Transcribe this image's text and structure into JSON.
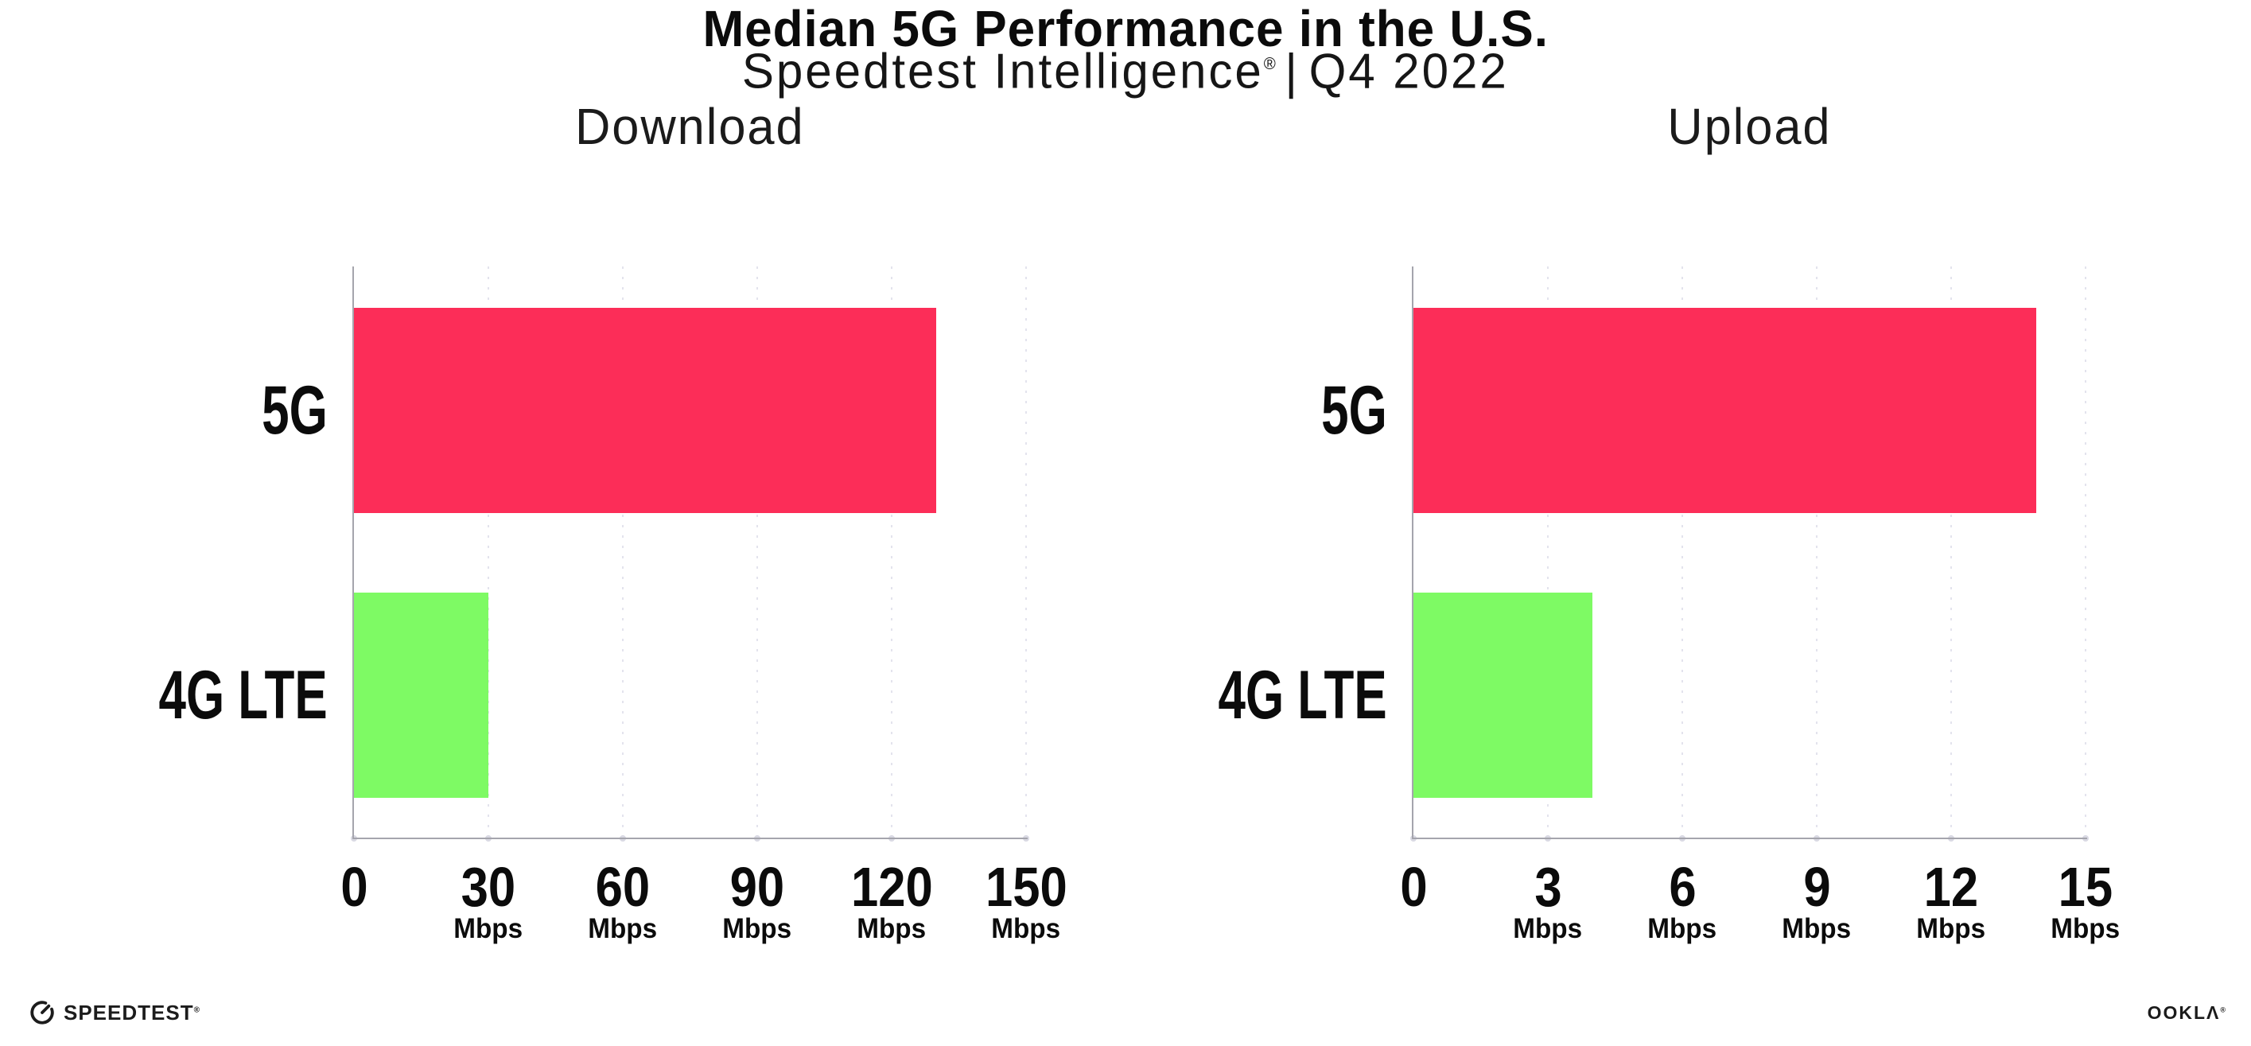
{
  "header": {
    "title": "Median 5G Performance in the U.S.",
    "subtitle": {
      "brand": "Speedtest Intelligence",
      "reg_mark": "®",
      "separator": "|",
      "period": "Q4 2022"
    }
  },
  "chart_data": [
    {
      "type": "bar",
      "orientation": "horizontal",
      "title": "Download",
      "categories": [
        "5G",
        "4G LTE"
      ],
      "values": [
        130,
        30
      ],
      "unit": "Mbps",
      "xlim": [
        0,
        150
      ],
      "xticks": [
        0,
        30,
        60,
        90,
        120,
        150
      ],
      "xtick_unit_label": "Mbps",
      "grid": "dotted-vertical",
      "legend": "none",
      "bar_colors": [
        "#FC2D58",
        "#7EFA64"
      ]
    },
    {
      "type": "bar",
      "orientation": "horizontal",
      "title": "Upload",
      "categories": [
        "5G",
        "4G LTE"
      ],
      "values": [
        13.9,
        4
      ],
      "unit": "Mbps",
      "xlim": [
        0,
        15
      ],
      "xticks": [
        0,
        3,
        6,
        9,
        12,
        15
      ],
      "xtick_unit_label": "Mbps",
      "grid": "dotted-vertical",
      "legend": "none",
      "bar_colors": [
        "#FC2D58",
        "#7EFA64"
      ]
    }
  ],
  "colors": {
    "bar_5g": "#FC2D58",
    "bar_4g_lte": "#7EFA64",
    "gridline": "#E3E3ED",
    "axis": "#A5A5AD",
    "text": "#0B0B0B"
  },
  "footer": {
    "speedtest": {
      "wordmark": "SPEEDTEST",
      "mark": "®",
      "icon": "speedtest-gauge-icon"
    },
    "ookla": {
      "wordmark": "OOKLA",
      "mark": "®"
    }
  }
}
